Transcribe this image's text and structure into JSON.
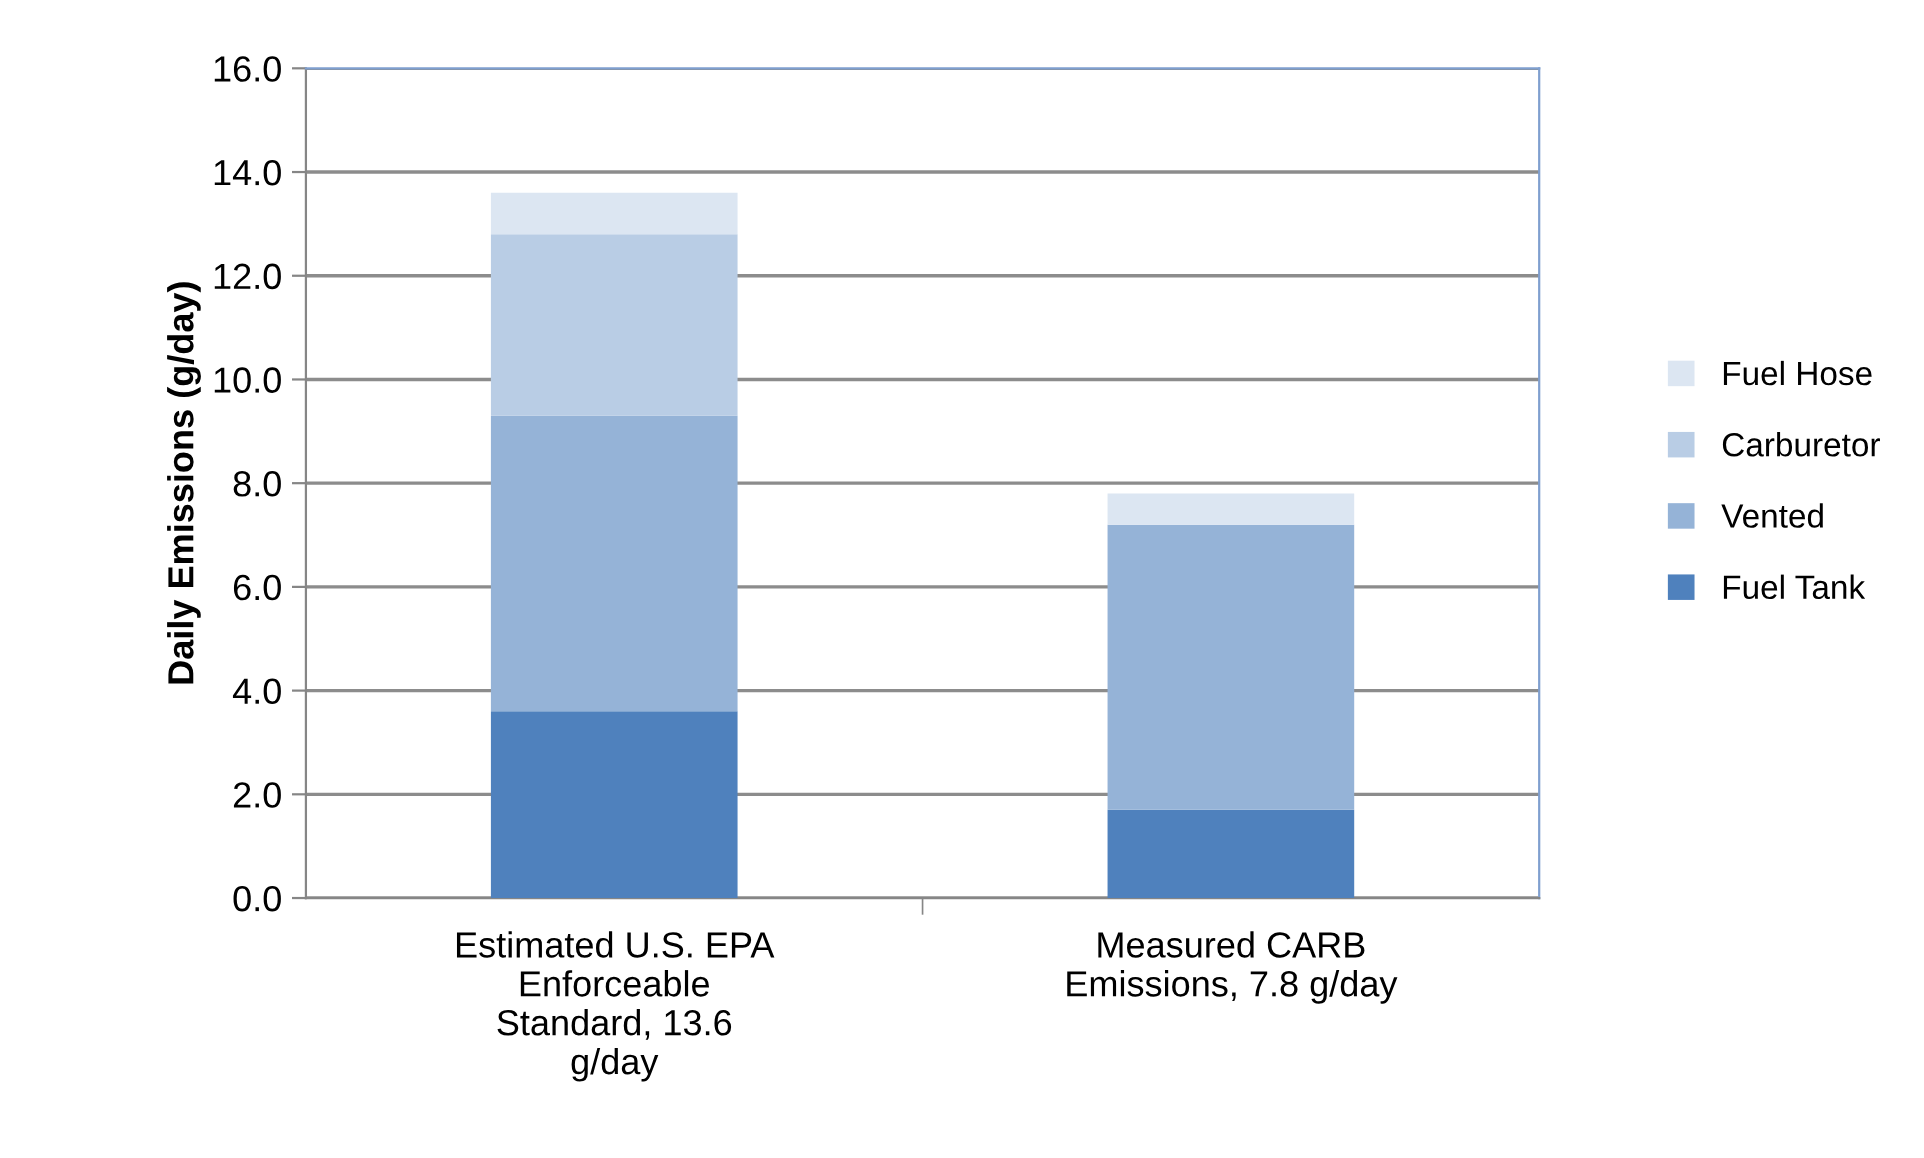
{
  "chart_data": {
    "type": "bar",
    "stacked": true,
    "ylabel": "Daily Emissions (g/day)",
    "categories": [
      "Estimated U.S. EPA Enforceable Standard, 13.6 g/day",
      "Measured CARB Emissions, 7.8 g/day"
    ],
    "series": [
      {
        "name": "Fuel Tank",
        "color": "#4f81bd",
        "values": [
          3.6,
          1.7
        ]
      },
      {
        "name": "Vented",
        "color": "#95b3d7",
        "values": [
          5.7,
          5.5
        ]
      },
      {
        "name": "Carburetor",
        "color": "#b9cde5",
        "values": [
          3.5,
          0
        ]
      },
      {
        "name": "Fuel Hose",
        "color": "#dce6f2",
        "values": [
          0.8,
          0.6
        ]
      }
    ],
    "ylim": [
      0,
      16
    ],
    "yticks": [
      {
        "value": 0,
        "label": "0.0"
      },
      {
        "value": 2,
        "label": "2.0"
      },
      {
        "value": 4,
        "label": "4.0"
      },
      {
        "value": 6,
        "label": "6.0"
      },
      {
        "value": 8,
        "label": "8.0"
      },
      {
        "value": 10,
        "label": "10.0"
      },
      {
        "value": 12,
        "label": "12.0"
      },
      {
        "value": 14,
        "label": "14.0"
      },
      {
        "value": 16,
        "label": "16.0"
      }
    ],
    "grid": "y",
    "legend": "right"
  }
}
